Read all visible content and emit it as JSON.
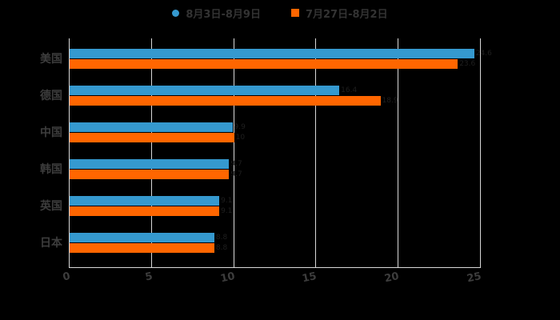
{
  "background": "#000000",
  "colors": {
    "series1": "#3599cf",
    "series2": "#ff6600",
    "grid": "#d8d8d8",
    "axis": "#d8d8d8",
    "tick_label": "#3d3d3d",
    "category_label": "#3d3d3d",
    "legend_text": "#333333",
    "value_label": "#1f1f1f"
  },
  "legend": {
    "items": [
      {
        "label": "8月3日-8月9日",
        "marker": "circle",
        "color": "#3599cf"
      },
      {
        "label": "7月27日-8月2日",
        "marker": "square",
        "color": "#ff6600"
      }
    ]
  },
  "chart_data": {
    "type": "bar",
    "orientation": "horizontal",
    "title": "",
    "xlabel": "",
    "ylabel": "",
    "categories": [
      "美国",
      "德国",
      "中国",
      "韩国",
      "英国",
      "日本"
    ],
    "series": [
      {
        "name": "8月3日-8月9日",
        "color": "#3599cf",
        "values": [
          24.6,
          16.4,
          9.9,
          9.7,
          9.1,
          8.8
        ]
      },
      {
        "name": "7月27日-8月2日",
        "color": "#ff6600",
        "values": [
          23.6,
          18.9,
          10,
          9.7,
          9.1,
          8.8
        ]
      }
    ],
    "xlim": [
      0,
      25
    ],
    "xticks": [
      0,
      5,
      10,
      15,
      20,
      25
    ],
    "grid": true,
    "legend_position": "top"
  }
}
